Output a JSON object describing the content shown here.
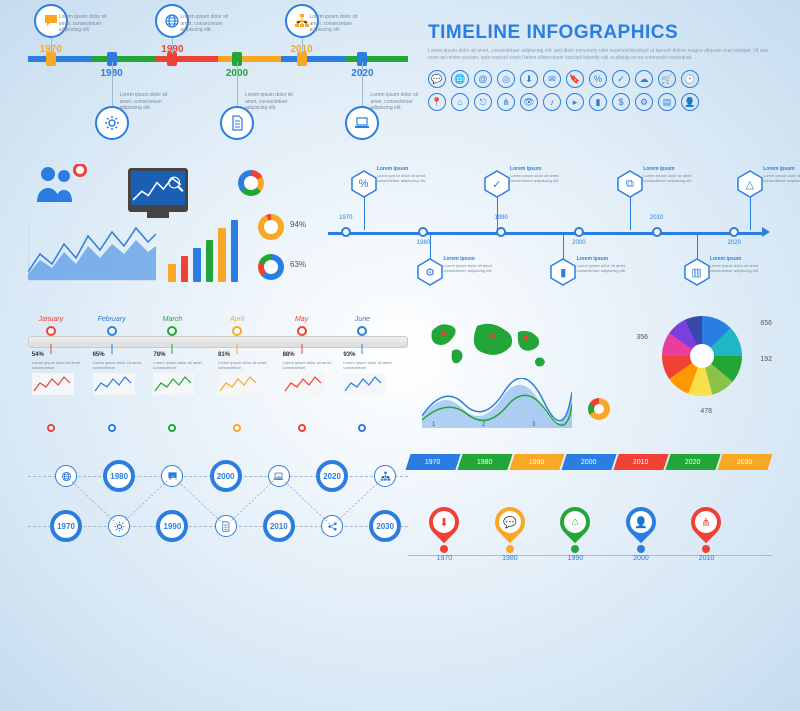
{
  "palette": {
    "blue": "#2b7de1",
    "green": "#23a638",
    "red": "#ef4136",
    "yellow": "#f9a825",
    "grey": "#7a8a99",
    "cyan": "#1fb7c4",
    "magenta": "#e83ea0",
    "violet": "#7b3fe0",
    "lime": "#8bc34a",
    "orange": "#ff9800"
  },
  "lorem_short": "Lorem ipsum dolor sit amet, consectetuer adipiscing elit.",
  "lorem_long": "Lorem ipsum dolor sit amet, consectetuer adipiscing elit, sed diam nonummy nibh euismod tincidunt ut laoreet dolore magna aliquam erat volutpat. Ut wisi enim ad minim veniam, quis nostrud exerci tation ullamcorper suscipit lobortis nisl ut aliquip ex ea commodo consequat.",
  "title": "TIMELINE INFOGRAPHICS",
  "top_timeline": {
    "segments": [
      "#2b7de1",
      "#23a638",
      "#ef4136",
      "#f9a825",
      "#2b7de1",
      "#23a638"
    ],
    "points": [
      {
        "x": 6,
        "year": "1970",
        "color": "#f9a825",
        "icon": "chat",
        "pos": "top"
      },
      {
        "x": 22,
        "year": "1980",
        "color": "#2b7de1",
        "icon": "gear",
        "pos": "bot"
      },
      {
        "x": 38,
        "year": "1990",
        "color": "#ef4136",
        "icon": "globe",
        "pos": "top"
      },
      {
        "x": 55,
        "year": "2000",
        "color": "#23a638",
        "icon": "doc",
        "pos": "bot"
      },
      {
        "x": 72,
        "year": "2010",
        "color": "#f9a825",
        "icon": "sitemap",
        "pos": "top"
      },
      {
        "x": 88,
        "year": "2020",
        "color": "#2b7de1",
        "icon": "laptop",
        "pos": "bot"
      }
    ]
  },
  "icon_grid": [
    "chat",
    "globe",
    "at",
    "target",
    "download",
    "mail",
    "bookmark",
    "percent",
    "check",
    "cloud",
    "cart",
    "clock",
    "pin",
    "home",
    "share",
    "wifi",
    "eye",
    "music",
    "video",
    "bars",
    "dollar",
    "gear",
    "doc",
    "user"
  ],
  "donuts": {
    "pct1": "94%",
    "pct2": "63%"
  },
  "bar_chart": {
    "values": [
      18,
      26,
      34,
      42,
      54,
      62
    ],
    "colors": [
      "#f9a825",
      "#ef4136",
      "#2b7de1",
      "#23a638",
      "#f9a825",
      "#2b7de1"
    ]
  },
  "hex_timeline": {
    "ticks": [
      "1970",
      "1980",
      "1990",
      "2000",
      "2010",
      "2020"
    ],
    "hex": [
      {
        "x": 8,
        "pos": "top",
        "icon": "%",
        "label": "Lorem ipsum"
      },
      {
        "x": 23,
        "pos": "bot",
        "icon": "⚙",
        "label": "Lorem ipsum"
      },
      {
        "x": 38,
        "pos": "top",
        "icon": "✓",
        "label": "Lorem ipsum"
      },
      {
        "x": 53,
        "pos": "bot",
        "icon": "▮",
        "label": "Lorem ipsum"
      },
      {
        "x": 68,
        "pos": "top",
        "icon": "⧉",
        "label": "Lorem ipsum"
      },
      {
        "x": 83,
        "pos": "bot",
        "icon": "▥",
        "label": "Lorem ipsum"
      },
      {
        "x": 95,
        "pos": "top",
        "icon": "△",
        "label": "Lorem ipsum"
      }
    ]
  },
  "month_timeline": {
    "months": [
      {
        "x": 6,
        "label": "January",
        "color": "#ef4136",
        "pct": "54%"
      },
      {
        "x": 22,
        "label": "February",
        "color": "#2b7de1",
        "pct": "65%"
      },
      {
        "x": 38,
        "label": "March",
        "color": "#23a638",
        "pct": "78%"
      },
      {
        "x": 55,
        "label": "April",
        "color": "#f9a825",
        "pct": "81%"
      },
      {
        "x": 72,
        "label": "May",
        "color": "#ef4136",
        "pct": "88%"
      },
      {
        "x": 88,
        "label": "June",
        "color": "#2b7de1",
        "pct": "93%"
      }
    ]
  },
  "world": {
    "labels": [
      "356",
      "656",
      "192",
      "478"
    ],
    "wave_labels": [
      "1",
      "2",
      "3"
    ]
  },
  "big_pie": {
    "slices": [
      {
        "deg": 45,
        "color": "#2b7de1"
      },
      {
        "deg": 90,
        "color": "#1fb7c4"
      },
      {
        "deg": 130,
        "color": "#23a638"
      },
      {
        "deg": 165,
        "color": "#8bc34a"
      },
      {
        "deg": 200,
        "color": "#f9e04a"
      },
      {
        "deg": 235,
        "color": "#ff9800"
      },
      {
        "deg": 270,
        "color": "#ef4136"
      },
      {
        "deg": 305,
        "color": "#e83ea0"
      },
      {
        "deg": 335,
        "color": "#7b3fe0"
      },
      {
        "deg": 360,
        "color": "#3949ab"
      }
    ]
  },
  "dot_timeline": {
    "top": [
      {
        "x": 10,
        "icon": "globe"
      },
      {
        "x": 24,
        "year": "1980"
      },
      {
        "x": 38,
        "icon": "chat"
      },
      {
        "x": 52,
        "year": "2000"
      },
      {
        "x": 66,
        "icon": "laptop"
      },
      {
        "x": 80,
        "year": "2020"
      },
      {
        "x": 94,
        "icon": "sitemap"
      }
    ],
    "bot": [
      {
        "x": 10,
        "year": "1970"
      },
      {
        "x": 24,
        "icon": "gear"
      },
      {
        "x": 38,
        "year": "1990"
      },
      {
        "x": 52,
        "icon": "doc"
      },
      {
        "x": 66,
        "year": "2010"
      },
      {
        "x": 80,
        "icon": "share"
      },
      {
        "x": 94,
        "year": "2030"
      }
    ]
  },
  "skew_bars": [
    {
      "label": "1970",
      "color": "#2b7de1"
    },
    {
      "label": "1980",
      "color": "#23a638"
    },
    {
      "label": "1990",
      "color": "#f9a825"
    },
    {
      "label": "2000",
      "color": "#2b7de1"
    },
    {
      "label": "2010",
      "color": "#ef4136"
    },
    {
      "label": "2020",
      "color": "#23a638"
    },
    {
      "label": "2030",
      "color": "#f9a825"
    }
  ],
  "pins": [
    {
      "x": 10,
      "year": "1970",
      "color": "#ef4136",
      "icon": "⬇"
    },
    {
      "x": 28,
      "year": "1980",
      "color": "#f9a825",
      "icon": "💬"
    },
    {
      "x": 46,
      "year": "1990",
      "color": "#23a638",
      "icon": "⌂"
    },
    {
      "x": 64,
      "year": "2000",
      "color": "#2b7de1",
      "icon": "👤"
    },
    {
      "x": 82,
      "year": "2010",
      "color": "#ef4136",
      "icon": "⋔"
    }
  ]
}
